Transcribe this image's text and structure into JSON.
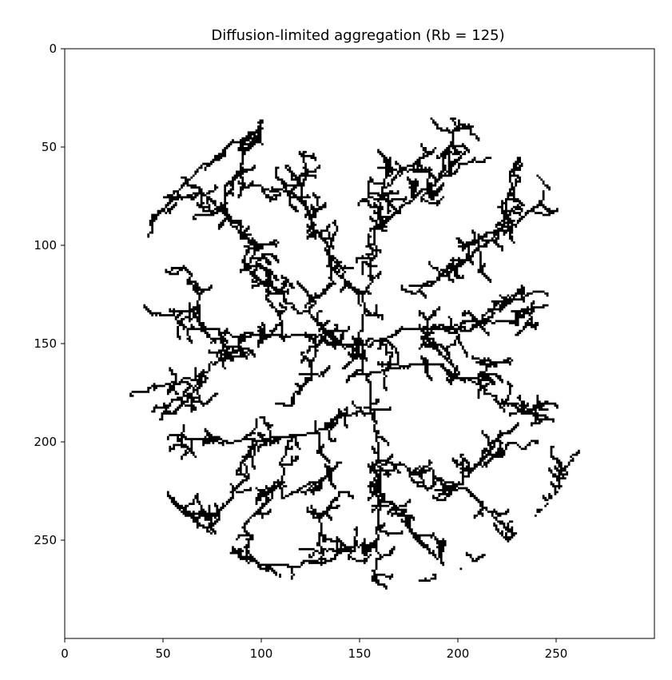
{
  "chart_data": {
    "type": "heatmap",
    "title": "Diffusion-limited aggregation (Rb = 125)",
    "xlabel": "",
    "ylabel": "",
    "grid_size": 300,
    "bounding_radius": 125,
    "center": [
      150,
      150
    ],
    "xlim": [
      0,
      300
    ],
    "ylim": [
      300,
      0
    ],
    "y_inverted": true,
    "grid": false,
    "legend": "none",
    "x_ticks": [
      0,
      50,
      100,
      150,
      200,
      250
    ],
    "y_ticks": [
      0,
      50,
      100,
      150,
      200,
      250
    ],
    "colormap": {
      "occupied": "#000000",
      "empty": "#ffffff"
    },
    "branches": [
      {
        "name": "main-north",
        "points": [
          [
            150,
            150
          ],
          [
            152,
            130
          ],
          [
            155,
            110
          ],
          [
            158,
            90
          ],
          [
            160,
            75
          ],
          [
            163,
            62
          ],
          [
            165,
            55
          ]
        ]
      },
      {
        "name": "main-south",
        "points": [
          [
            150,
            150
          ],
          [
            155,
            170
          ],
          [
            158,
            190
          ],
          [
            158,
            210
          ],
          [
            160,
            230
          ],
          [
            158,
            250
          ],
          [
            156,
            270
          ]
        ]
      },
      {
        "name": "main-east",
        "points": [
          [
            150,
            150
          ],
          [
            170,
            142
          ],
          [
            190,
            140
          ],
          [
            210,
            138
          ],
          [
            230,
            135
          ],
          [
            245,
            130
          ]
        ]
      },
      {
        "name": "main-west",
        "points": [
          [
            150,
            150
          ],
          [
            130,
            146
          ],
          [
            110,
            145
          ],
          [
            90,
            146
          ],
          [
            70,
            142
          ],
          [
            55,
            135
          ],
          [
            40,
            130
          ]
        ]
      },
      {
        "name": "northwest-diagonal",
        "points": [
          [
            150,
            150
          ],
          [
            125,
            135
          ],
          [
            105,
            120
          ],
          [
            95,
            105
          ],
          [
            82,
            85
          ],
          [
            68,
            70
          ],
          [
            55,
            60
          ]
        ]
      },
      {
        "name": "northwest-upper",
        "points": [
          [
            80,
            80
          ],
          [
            90,
            60
          ],
          [
            98,
            45
          ],
          [
            100,
            40
          ]
        ]
      },
      {
        "name": "northwest-edge",
        "points": [
          [
            42,
            95
          ],
          [
            55,
            75
          ],
          [
            70,
            58
          ],
          [
            85,
            46
          ],
          [
            98,
            40
          ]
        ]
      },
      {
        "name": "north-left-fan",
        "points": [
          [
            150,
            130
          ],
          [
            135,
            110
          ],
          [
            125,
            90
          ],
          [
            115,
            72
          ],
          [
            100,
            70
          ],
          [
            88,
            68
          ]
        ]
      },
      {
        "name": "north-branch-a",
        "points": [
          [
            125,
            90
          ],
          [
            120,
            75
          ],
          [
            122,
            60
          ],
          [
            122,
            52
          ]
        ]
      },
      {
        "name": "north-right",
        "points": [
          [
            158,
            90
          ],
          [
            170,
            80
          ],
          [
            180,
            72
          ],
          [
            190,
            65
          ],
          [
            200,
            60
          ],
          [
            208,
            55
          ]
        ]
      },
      {
        "name": "north-top",
        "points": [
          [
            190,
            65
          ],
          [
            195,
            50
          ],
          [
            200,
            38
          ],
          [
            205,
            40
          ]
        ]
      },
      {
        "name": "north-mid",
        "points": [
          [
            162,
            70
          ],
          [
            172,
            60
          ],
          [
            180,
            55
          ],
          [
            188,
            50
          ]
        ]
      },
      {
        "name": "northeast",
        "points": [
          [
            175,
            120
          ],
          [
            195,
            110
          ],
          [
            210,
            100
          ],
          [
            222,
            90
          ],
          [
            235,
            82
          ],
          [
            250,
            82
          ]
        ]
      },
      {
        "name": "northeast-upper",
        "points": [
          [
            222,
            90
          ],
          [
            225,
            75
          ],
          [
            228,
            62
          ],
          [
            232,
            55
          ]
        ]
      },
      {
        "name": "northeast-edge",
        "points": [
          [
            228,
            52
          ],
          [
            240,
            62
          ],
          [
            248,
            72
          ]
        ]
      },
      {
        "name": "northeast-mid",
        "points": [
          [
            200,
            100
          ],
          [
            210,
            96
          ],
          [
            222,
            102
          ]
        ]
      },
      {
        "name": "east-right",
        "points": [
          [
            210,
            138
          ],
          [
            220,
            128
          ],
          [
            235,
            124
          ],
          [
            245,
            125
          ]
        ]
      },
      {
        "name": "east-branch",
        "points": [
          [
            180,
            140
          ],
          [
            188,
            150
          ],
          [
            195,
            155
          ]
        ]
      },
      {
        "name": "east-lower",
        "points": [
          [
            155,
            165
          ],
          [
            175,
            160
          ],
          [
            195,
            165
          ],
          [
            210,
            170
          ],
          [
            220,
            180
          ],
          [
            232,
            185
          ],
          [
            245,
            188
          ]
        ]
      },
      {
        "name": "east-lower-b",
        "points": [
          [
            210,
            170
          ],
          [
            215,
            160
          ],
          [
            212,
            158
          ]
        ]
      },
      {
        "name": "east-lower-c",
        "points": [
          [
            232,
            185
          ],
          [
            240,
            180
          ],
          [
            245,
            180
          ]
        ]
      },
      {
        "name": "southeast",
        "points": [
          [
            158,
            210
          ],
          [
            175,
            215
          ],
          [
            195,
            225
          ],
          [
            215,
            235
          ],
          [
            225,
            245
          ],
          [
            230,
            255
          ]
        ]
      },
      {
        "name": "southeast-up",
        "points": [
          [
            195,
            225
          ],
          [
            205,
            215
          ],
          [
            215,
            205
          ],
          [
            225,
            200
          ],
          [
            240,
            200
          ]
        ]
      },
      {
        "name": "southeast-edge",
        "points": [
          [
            180,
            270
          ],
          [
            200,
            265
          ],
          [
            220,
            258
          ],
          [
            235,
            248
          ],
          [
            248,
            230
          ],
          [
            258,
            208
          ],
          [
            261,
            204
          ]
        ]
      },
      {
        "name": "southeast-mid",
        "points": [
          [
            215,
            205
          ],
          [
            222,
            195
          ],
          [
            230,
            190
          ]
        ]
      },
      {
        "name": "south-right",
        "points": [
          [
            160,
            230
          ],
          [
            175,
            240
          ],
          [
            185,
            255
          ],
          [
            192,
            262
          ]
        ]
      },
      {
        "name": "south-left",
        "points": [
          [
            158,
            250
          ],
          [
            145,
            255
          ],
          [
            135,
            260
          ],
          [
            120,
            262
          ],
          [
            105,
            262
          ],
          [
            95,
            258
          ],
          [
            85,
            253
          ]
        ]
      },
      {
        "name": "south-left-up",
        "points": [
          [
            130,
            262
          ],
          [
            130,
            245
          ],
          [
            135,
            232
          ],
          [
            140,
            225
          ]
        ]
      },
      {
        "name": "southwest",
        "points": [
          [
            155,
            185
          ],
          [
            135,
            192
          ],
          [
            115,
            196
          ],
          [
            95,
            198
          ],
          [
            75,
            198
          ],
          [
            60,
            196
          ],
          [
            52,
            198
          ]
        ]
      },
      {
        "name": "southwest-low",
        "points": [
          [
            95,
            198
          ],
          [
            90,
            210
          ],
          [
            85,
            225
          ],
          [
            78,
            235
          ],
          [
            72,
            245
          ]
        ]
      },
      {
        "name": "southwest-low-b",
        "points": [
          [
            115,
            196
          ],
          [
            110,
            212
          ],
          [
            105,
            225
          ],
          [
            98,
            235
          ],
          [
            90,
            243
          ]
        ]
      },
      {
        "name": "southwest-edge",
        "points": [
          [
            52,
            225
          ],
          [
            60,
            235
          ],
          [
            68,
            242
          ],
          [
            74,
            246
          ]
        ]
      },
      {
        "name": "south-left-b",
        "points": [
          [
            140,
            210
          ],
          [
            130,
            220
          ],
          [
            118,
            225
          ],
          [
            110,
            228
          ]
        ]
      },
      {
        "name": "west-upper",
        "points": [
          [
            110,
            145
          ],
          [
            105,
            130
          ],
          [
            100,
            118
          ],
          [
            92,
            110
          ]
        ]
      },
      {
        "name": "west-lower",
        "points": [
          [
            90,
            146
          ],
          [
            80,
            158
          ],
          [
            70,
            165
          ],
          [
            58,
            170
          ],
          [
            45,
            172
          ]
        ]
      },
      {
        "name": "west-lower-b",
        "points": [
          [
            70,
            165
          ],
          [
            62,
            178
          ],
          [
            55,
            185
          ],
          [
            48,
            188
          ]
        ]
      },
      {
        "name": "west-upper-b",
        "points": [
          [
            70,
            142
          ],
          [
            68,
            130
          ],
          [
            62,
            118
          ],
          [
            60,
            110
          ]
        ]
      },
      {
        "name": "center-left",
        "points": [
          [
            130,
            146
          ],
          [
            125,
            160
          ],
          [
            120,
            172
          ],
          [
            115,
            178
          ]
        ]
      },
      {
        "name": "center-up",
        "points": [
          [
            135,
            110
          ],
          [
            130,
            125
          ],
          [
            118,
            118
          ]
        ]
      }
    ]
  }
}
